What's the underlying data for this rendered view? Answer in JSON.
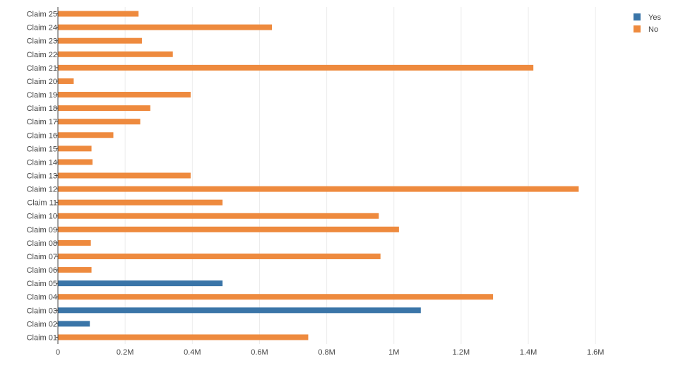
{
  "chart_data": {
    "type": "bar",
    "orientation": "horizontal",
    "categories": [
      "Claim 01",
      "Claim 02",
      "Claim 03",
      "Claim 04",
      "Claim 05",
      "Claim 06",
      "Claim 07",
      "Claim 08",
      "Claim 09",
      "Claim 10",
      "Claim 11",
      "Claim 12",
      "Claim 13",
      "Claim 14",
      "Claim 15",
      "Claim 16",
      "Claim 17",
      "Claim 18",
      "Claim 19",
      "Claim 20",
      "Claim 21",
      "Claim 22",
      "Claim 23",
      "Claim 24",
      "Claim 25"
    ],
    "series": [
      {
        "name": "Yes",
        "color": "#3a75a8",
        "values": [
          null,
          95000,
          1080000,
          null,
          490000,
          null,
          null,
          null,
          null,
          null,
          null,
          null,
          null,
          null,
          null,
          null,
          null,
          null,
          null,
          null,
          null,
          null,
          null,
          null,
          null
        ]
      },
      {
        "name": "No",
        "color": "#ee8a3e",
        "values": [
          745000,
          null,
          null,
          1295000,
          null,
          100000,
          960000,
          98000,
          1015000,
          955000,
          490000,
          1550000,
          395000,
          103000,
          100000,
          165000,
          245000,
          275000,
          395000,
          47000,
          1415000,
          342000,
          250000,
          637000,
          240000
        ]
      }
    ],
    "xlim": [
      0,
      1650000
    ],
    "xticks": [
      {
        "value": 0,
        "label": "0"
      },
      {
        "value": 200000,
        "label": "0.2M"
      },
      {
        "value": 400000,
        "label": "0.4M"
      },
      {
        "value": 600000,
        "label": "0.6M"
      },
      {
        "value": 800000,
        "label": "0.8M"
      },
      {
        "value": 1000000,
        "label": "1M"
      },
      {
        "value": 1200000,
        "label": "1.2M"
      },
      {
        "value": 1400000,
        "label": "1.4M"
      },
      {
        "value": 1600000,
        "label": "1.6M"
      }
    ],
    "title": "",
    "xlabel": "",
    "ylabel": "",
    "grid": true,
    "legend_position": "top-right"
  }
}
